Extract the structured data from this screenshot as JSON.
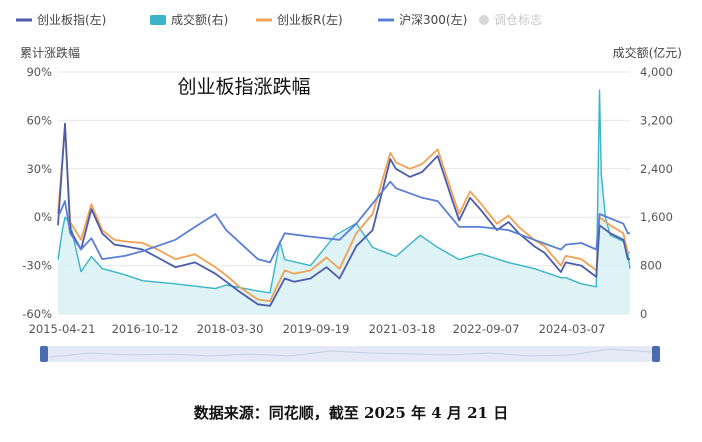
{
  "chart_data": {
    "type": "line",
    "title": "创业板指涨跌幅",
    "left_axis_label": "累计涨跌幅",
    "right_axis_label": "成交额(亿元)",
    "left_axis": {
      "min": -60,
      "max": 90,
      "ticks": [
        "90%",
        "60%",
        "30%",
        "0%",
        "-30%",
        "-60%"
      ]
    },
    "right_axis": {
      "min": 0,
      "max": 4000,
      "ticks": [
        "4,000",
        "3,200",
        "2,400",
        "1,600",
        "800",
        "0"
      ]
    },
    "x_ticks": [
      "2015-04-21",
      "2016-10-12",
      "2018-03-30",
      "2019-09-19",
      "2021-03-18",
      "2022-09-07",
      "2024-03-07"
    ],
    "x_tick_positions": [
      0,
      0.1672,
      0.3333,
      0.5,
      0.6672,
      0.8333,
      1.0
    ],
    "grid": true,
    "legend_position": "top-left",
    "legend": [
      {
        "name": "创业板指(左)",
        "color": "#4a5caa",
        "shape": "line",
        "active": true
      },
      {
        "name": "成交额(右)",
        "color": "#3bb3c8",
        "shape": "rect",
        "active": true
      },
      {
        "name": "创业板R(左)",
        "color": "#f2a154",
        "shape": "line",
        "active": true
      },
      {
        "name": "沪深300(左)",
        "color": "#5b7fd6",
        "shape": "line",
        "active": true
      },
      {
        "name": "调仓标志",
        "color": "#d8d8d8",
        "shape": "dot",
        "active": false
      }
    ],
    "series": [
      {
        "name": "创业板指(左)",
        "axis": "left",
        "color": "#4a5caa",
        "x": [
          "2015-04-21",
          "2015-06-05",
          "2015-07-08",
          "2015-09-15",
          "2015-11-20",
          "2016-01-28",
          "2016-04-15",
          "2016-06-20",
          "2016-10-12",
          "2017-01-16",
          "2017-05-10",
          "2017-09-12",
          "2018-01-20",
          "2018-03-30",
          "2018-06-20",
          "2018-10-18",
          "2019-01-04",
          "2019-04-08",
          "2019-06-06",
          "2019-09-19",
          "2019-12-31",
          "2020-03-23",
          "2020-07-08",
          "2020-10-20",
          "2021-02-10",
          "2021-03-18",
          "2021-06-15",
          "2021-09-01",
          "2021-12-10",
          "2022-03-15",
          "2022-04-26",
          "2022-07-05",
          "2022-09-07",
          "2022-12-23",
          "2023-03-07",
          "2023-05-12",
          "2023-08-18",
          "2023-10-23",
          "2024-02-05",
          "2024-03-07",
          "2024-06-14",
          "2024-09-18",
          "2024-10-08",
          "2024-12-16",
          "2025-03-10",
          "2025-04-07",
          "2025-04-21"
        ],
        "values": [
          -5,
          58,
          -8,
          -20,
          5,
          -10,
          -17,
          -18,
          -20,
          -25,
          -31,
          -28,
          -35,
          -40,
          -46,
          -54,
          -55,
          -38,
          -40,
          -38,
          -31,
          -38,
          -18,
          -8,
          36,
          30,
          25,
          28,
          38,
          10,
          -2,
          12,
          5,
          -8,
          -3,
          -10,
          -18,
          -22,
          -34,
          -28,
          -30,
          -37,
          -5,
          -10,
          -14,
          -26,
          -26
        ]
      },
      {
        "name": "成交额(右)",
        "axis": "right",
        "color": "#3bb3c8",
        "x": [
          "2015-04-21",
          "2015-05-20",
          "2015-06-05",
          "2015-07-08",
          "2015-09-15",
          "2015-11-20",
          "2016-01-28",
          "2016-06-20",
          "2016-10-12",
          "2017-05-10",
          "2018-01-20",
          "2018-03-30",
          "2018-10-18",
          "2019-01-04",
          "2019-03-08",
          "2019-04-08",
          "2019-09-19",
          "2020-02-25",
          "2020-07-08",
          "2020-10-20",
          "2021-03-18",
          "2021-08-20",
          "2021-12-10",
          "2022-04-26",
          "2022-09-07",
          "2023-03-07",
          "2023-08-18",
          "2024-02-05",
          "2024-03-07",
          "2024-06-14",
          "2024-09-18",
          "2024-10-08",
          "2024-10-20",
          "2024-11-15",
          "2024-12-16",
          "2025-03-10",
          "2025-04-07",
          "2025-04-21"
        ],
        "values": [
          900,
          1400,
          1600,
          1500,
          700,
          950,
          750,
          650,
          550,
          500,
          420,
          480,
          380,
          350,
          1200,
          900,
          800,
          1300,
          1500,
          1100,
          950,
          1300,
          1100,
          900,
          1000,
          850,
          750,
          600,
          600,
          500,
          450,
          3700,
          2300,
          1600,
          1300,
          1200,
          1000,
          750
        ]
      },
      {
        "name": "创业板R(左)",
        "axis": "left",
        "color": "#f2a154",
        "x": [
          "2015-04-21",
          "2015-06-05",
          "2015-07-08",
          "2015-09-15",
          "2015-11-20",
          "2016-01-28",
          "2016-04-15",
          "2016-06-20",
          "2016-10-12",
          "2017-01-16",
          "2017-05-10",
          "2017-09-12",
          "2018-01-20",
          "2018-03-30",
          "2018-06-20",
          "2018-10-18",
          "2019-01-04",
          "2019-04-08",
          "2019-06-06",
          "2019-09-19",
          "2019-12-31",
          "2020-03-23",
          "2020-07-08",
          "2020-10-20",
          "2021-02-10",
          "2021-03-18",
          "2021-06-15",
          "2021-09-01",
          "2021-12-10",
          "2022-03-15",
          "2022-04-26",
          "2022-07-05",
          "2022-09-07",
          "2022-12-23",
          "2023-03-07",
          "2023-05-12",
          "2023-08-18",
          "2023-10-23",
          "2024-02-05",
          "2024-03-07",
          "2024-06-14",
          "2024-09-18",
          "2024-10-08",
          "2024-12-16",
          "2025-03-10",
          "2025-04-07",
          "2025-04-21"
        ],
        "values": [
          2,
          56,
          -3,
          -14,
          8,
          -8,
          -14,
          -15,
          -16,
          -20,
          -26,
          -23,
          -31,
          -36,
          -43,
          -51,
          -52,
          -33,
          -35,
          -33,
          -25,
          -32,
          -10,
          2,
          40,
          34,
          30,
          33,
          42,
          14,
          2,
          16,
          9,
          -4,
          1,
          -6,
          -14,
          -18,
          -30,
          -24,
          -26,
          -33,
          0,
          -5,
          -10,
          -22,
          -22
        ]
      },
      {
        "name": "沪深300(左)",
        "axis": "left",
        "color": "#5b7fd6",
        "x": [
          "2015-04-21",
          "2015-06-05",
          "2015-07-08",
          "2015-09-15",
          "2015-11-20",
          "2016-01-28",
          "2016-06-20",
          "2016-10-12",
          "2017-05-10",
          "2017-09-12",
          "2018-01-20",
          "2018-03-30",
          "2018-10-18",
          "2019-01-04",
          "2019-04-08",
          "2019-09-19",
          "2020-03-23",
          "2020-07-08",
          "2021-02-10",
          "2021-03-18",
          "2021-09-01",
          "2021-12-10",
          "2022-04-26",
          "2022-09-07",
          "2023-03-07",
          "2023-08-18",
          "2024-02-05",
          "2024-03-07",
          "2024-06-14",
          "2024-09-18",
          "2024-10-08",
          "2025-03-10",
          "2025-04-07",
          "2025-04-21"
        ],
        "values": [
          0,
          10,
          -10,
          -20,
          -13,
          -26,
          -24,
          -21,
          -14,
          -6,
          2,
          -8,
          -26,
          -28,
          -10,
          -12,
          -14,
          -4,
          22,
          18,
          12,
          10,
          -6,
          -6,
          -8,
          -14,
          -20,
          -17,
          -16,
          -20,
          2,
          -4,
          -10,
          -10
        ]
      }
    ]
  },
  "page": {
    "source_note": "数据来源：同花顺，截至 2025 年 4 月 21 日"
  }
}
